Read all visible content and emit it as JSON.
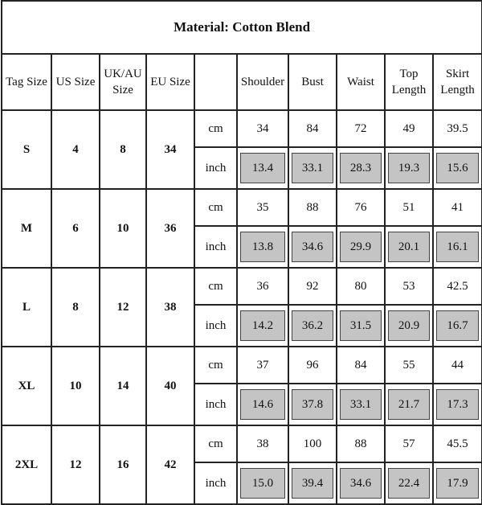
{
  "title": "Material: Cotton Blend",
  "header": {
    "sizes": [
      "Tag Size",
      "US Size",
      "UK/AU Size",
      "EU Size"
    ],
    "measures": [
      "Shoulder",
      "Bust",
      "Waist",
      "Top Length",
      "Skirt Length"
    ]
  },
  "units": [
    "cm",
    "inch"
  ],
  "rows": [
    {
      "tag": "S",
      "us": "4",
      "uk": "8",
      "eu": "34",
      "cm": [
        "34",
        "84",
        "72",
        "49",
        "39.5"
      ],
      "inch": [
        "13.4",
        "33.1",
        "28.3",
        "19.3",
        "15.6"
      ]
    },
    {
      "tag": "M",
      "us": "6",
      "uk": "10",
      "eu": "36",
      "cm": [
        "35",
        "88",
        "76",
        "51",
        "41"
      ],
      "inch": [
        "13.8",
        "34.6",
        "29.9",
        "20.1",
        "16.1"
      ]
    },
    {
      "tag": "L",
      "us": "8",
      "uk": "12",
      "eu": "38",
      "cm": [
        "36",
        "92",
        "80",
        "53",
        "42.5"
      ],
      "inch": [
        "14.2",
        "36.2",
        "31.5",
        "20.9",
        "16.7"
      ]
    },
    {
      "tag": "XL",
      "us": "10",
      "uk": "14",
      "eu": "40",
      "cm": [
        "37",
        "96",
        "84",
        "55",
        "44"
      ],
      "inch": [
        "14.6",
        "37.8",
        "33.1",
        "21.7",
        "17.3"
      ]
    },
    {
      "tag": "2XL",
      "us": "12",
      "uk": "16",
      "eu": "42",
      "cm": [
        "38",
        "100",
        "88",
        "57",
        "45.5"
      ],
      "inch": [
        "15.0",
        "39.4",
        "34.6",
        "22.4",
        "17.9"
      ]
    }
  ]
}
